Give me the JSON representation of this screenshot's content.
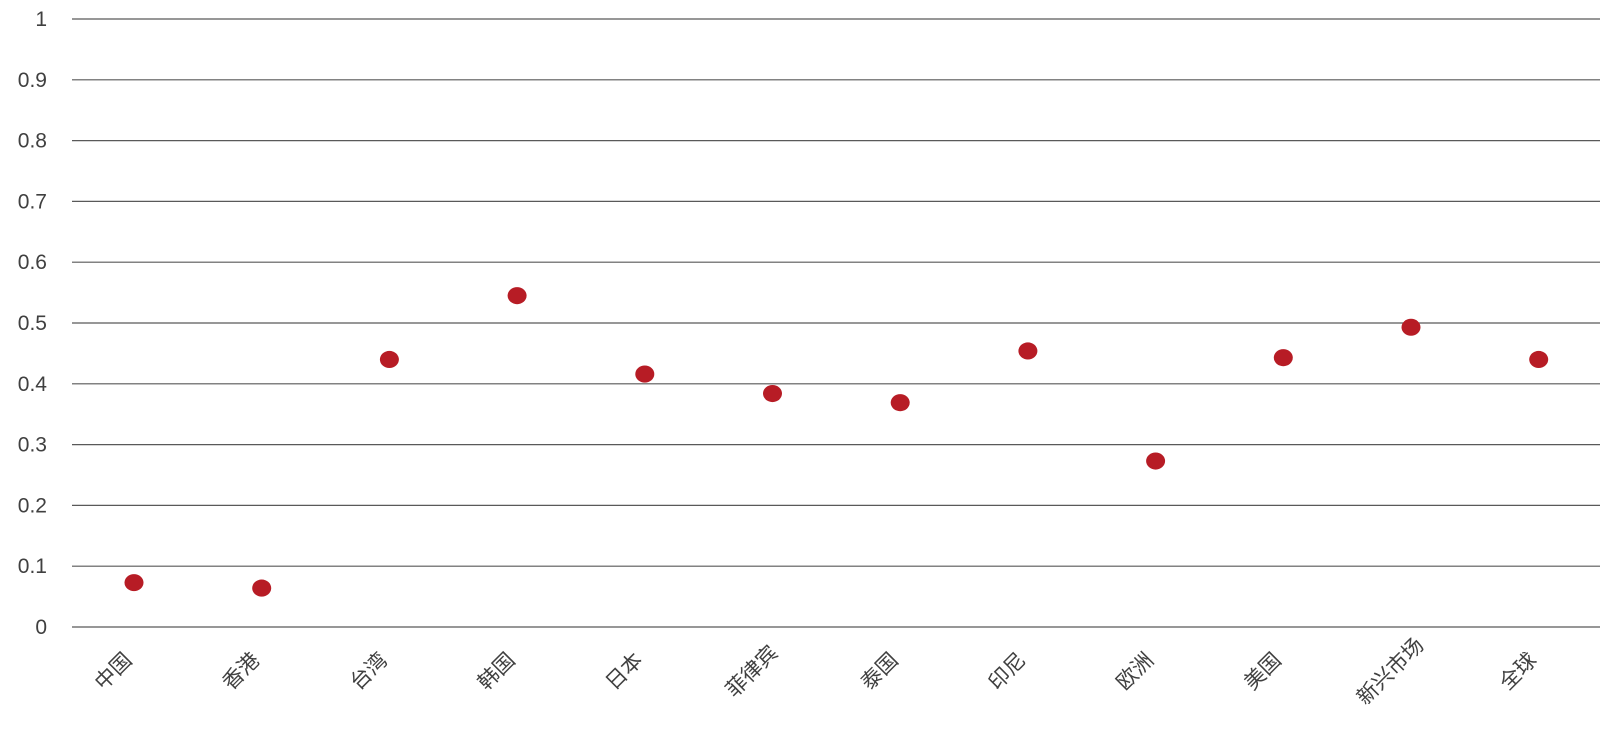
{
  "chart_data": {
    "type": "scatter",
    "categories": [
      "中国",
      "香港",
      "台湾",
      "韩国",
      "日本",
      "菲律宾",
      "泰国",
      "印尼",
      "欧洲",
      "美国",
      "新兴市场",
      "全球"
    ],
    "values": [
      0.073,
      0.064,
      0.44,
      0.545,
      0.416,
      0.384,
      0.369,
      0.454,
      0.273,
      0.443,
      0.493,
      0.44
    ],
    "ylim": [
      0,
      1
    ],
    "yticks": [
      "0",
      "0.1",
      "0.2",
      "0.3",
      "0.4",
      "0.5",
      "0.6",
      "0.7",
      "0.8",
      "0.9",
      "1"
    ],
    "marker_color": "#b71c25",
    "gridline_color": "#595959",
    "grid": true,
    "title": "",
    "xlabel": "",
    "ylabel": ""
  }
}
